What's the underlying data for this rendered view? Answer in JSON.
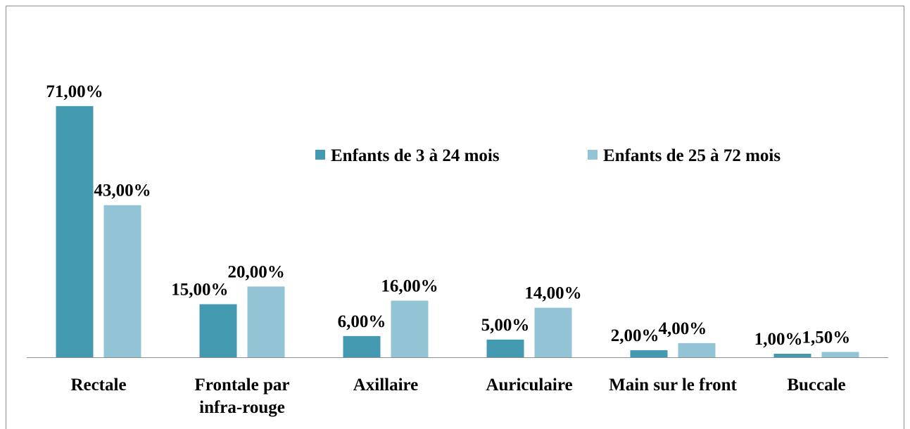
{
  "chart_data": {
    "type": "bar",
    "categories": [
      "Rectale",
      "Frontale par infra-rouge",
      "Axillaire",
      "Auriculaire",
      "Main sur le front",
      "Buccale"
    ],
    "series": [
      {
        "name": "Enfants de 3 à 24 mois",
        "color": "#4299b0",
        "values": [
          71,
          15,
          6,
          5,
          2,
          1
        ],
        "value_labels": [
          "71,00%",
          "15,00%",
          "6,00%",
          "5,00%",
          "2,00%",
          "1,00%"
        ]
      },
      {
        "name": "Enfants de 25 à 72 mois",
        "color": "#93c4d6",
        "values": [
          43,
          20,
          16,
          14,
          4,
          1.5
        ],
        "value_labels": [
          "43,00%",
          "20,00%",
          "16,00%",
          "14,00%",
          "4,00%",
          "1,50%"
        ]
      }
    ],
    "legend": "top-right"
  }
}
